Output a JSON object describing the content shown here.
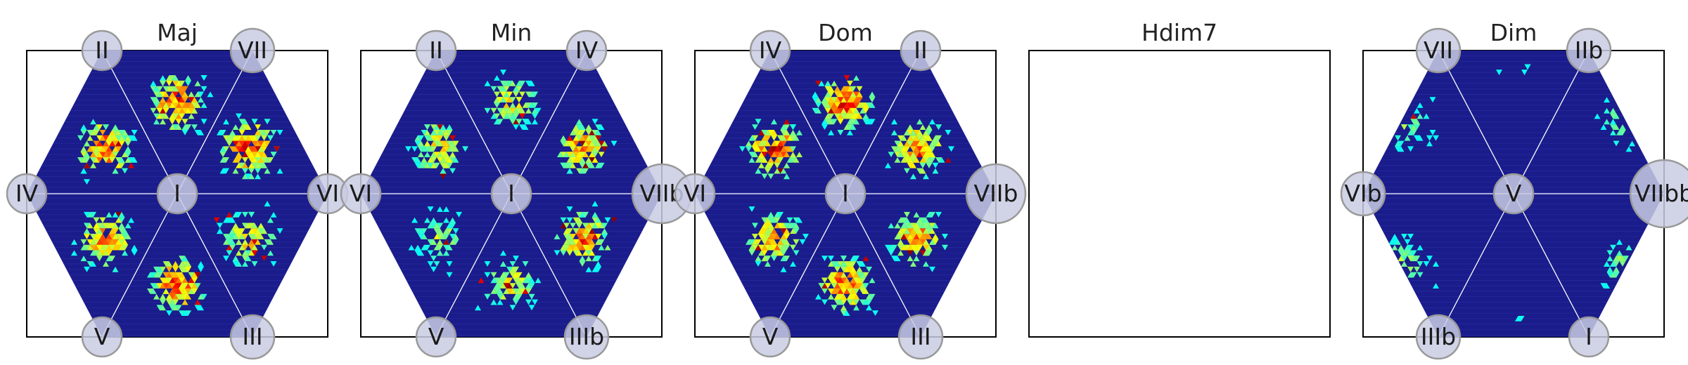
{
  "chart_data": [
    {
      "type": "heatmap",
      "title": "Maj",
      "center_label": "I",
      "vertex_labels": [
        "II",
        "VII",
        "VI",
        "III",
        "V",
        "IV"
      ],
      "empty": false,
      "clusters": [
        {
          "angle": 90,
          "r": 0.55,
          "weight": 1.0
        },
        {
          "angle": 30,
          "r": 0.55,
          "weight": 1.0
        },
        {
          "angle": 150,
          "r": 0.55,
          "weight": 0.95
        },
        {
          "angle": 210,
          "r": 0.55,
          "weight": 0.9
        },
        {
          "angle": 270,
          "r": 0.55,
          "weight": 1.0
        },
        {
          "angle": 330,
          "r": 0.55,
          "weight": 0.7
        }
      ]
    },
    {
      "type": "heatmap",
      "title": "Min",
      "center_label": "I",
      "vertex_labels": [
        "II",
        "IV",
        "VIIb",
        "IIIb",
        "V",
        "VI"
      ],
      "empty": false,
      "clusters": [
        {
          "angle": 90,
          "r": 0.55,
          "weight": 0.6
        },
        {
          "angle": 30,
          "r": 0.55,
          "weight": 0.8
        },
        {
          "angle": 150,
          "r": 0.55,
          "weight": 0.7
        },
        {
          "angle": 210,
          "r": 0.55,
          "weight": 0.45
        },
        {
          "angle": 270,
          "r": 0.55,
          "weight": 0.6
        },
        {
          "angle": 330,
          "r": 0.55,
          "weight": 0.85
        }
      ]
    },
    {
      "type": "heatmap",
      "title": "Dom",
      "center_label": "I",
      "vertex_labels": [
        "IV",
        "II",
        "VIIb",
        "III",
        "V",
        "VI"
      ],
      "empty": false,
      "clusters": [
        {
          "angle": 90,
          "r": 0.55,
          "weight": 1.0
        },
        {
          "angle": 30,
          "r": 0.55,
          "weight": 0.85
        },
        {
          "angle": 150,
          "r": 0.55,
          "weight": 1.0
        },
        {
          "angle": 210,
          "r": 0.55,
          "weight": 0.85
        },
        {
          "angle": 270,
          "r": 0.55,
          "weight": 0.9
        },
        {
          "angle": 330,
          "r": 0.55,
          "weight": 0.85
        }
      ]
    },
    {
      "type": "heatmap",
      "title": "Hdim7",
      "center_label": "",
      "vertex_labels": [],
      "empty": true,
      "clusters": []
    },
    {
      "type": "heatmap",
      "title": "Dim",
      "center_label": "V",
      "vertex_labels": [
        "VII",
        "IIb",
        "VIIbb",
        "I",
        "IIIb",
        "VIb"
      ],
      "empty": false,
      "clusters": [
        {
          "angle": 90,
          "r": 0.9,
          "weight": 0.45
        },
        {
          "angle": 30,
          "r": 0.88,
          "weight": 0.45
        },
        {
          "angle": 150,
          "r": 0.85,
          "weight": 0.4
        },
        {
          "angle": 210,
          "r": 0.85,
          "weight": 0.45
        },
        {
          "angle": 270,
          "r": 0.92,
          "weight": 0.4
        },
        {
          "angle": 330,
          "r": 0.88,
          "weight": 0.45
        }
      ]
    }
  ],
  "colors": {
    "background": "#1a1c8c",
    "frame": "#000000",
    "node_fill": "#c9cbe3",
    "node_stroke": "#999999",
    "grid_line": "#ffffff"
  }
}
